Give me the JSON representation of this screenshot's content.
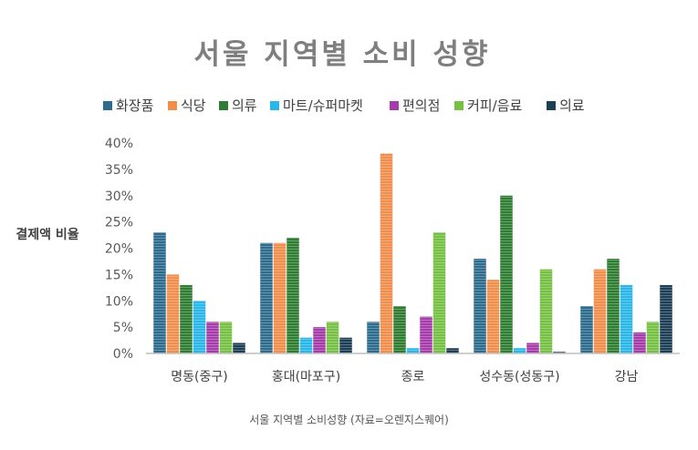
{
  "caption": "서울 지역별 소비성향 (자료=오렌지스퀘어)",
  "chart_data": {
    "type": "bar",
    "title": "서울 지역별 소비 성향",
    "xlabel": "",
    "ylabel": "결제액 비율",
    "ylim": [
      0,
      40
    ],
    "yticks": [
      "0%",
      "5%",
      "10%",
      "15%",
      "20%",
      "25%",
      "30%",
      "35%",
      "40%"
    ],
    "grid": false,
    "legend_position": "top",
    "categories": [
      "명동(중구)",
      "홍대(마포구)",
      "종로",
      "성수동(성동구)",
      "강남"
    ],
    "series": [
      {
        "name": "화장품",
        "color": "#2e6c8e",
        "values": [
          23,
          21,
          6,
          18,
          9
        ]
      },
      {
        "name": "식당",
        "color": "#f28e4c",
        "values": [
          15,
          21,
          38,
          14,
          16
        ]
      },
      {
        "name": "의류",
        "color": "#2f7d32",
        "values": [
          13,
          22,
          9,
          30,
          18
        ]
      },
      {
        "name": "마트/슈퍼마켓",
        "color": "#29b6e8",
        "values": [
          10,
          3,
          1,
          1,
          13
        ]
      },
      {
        "name": "편의점",
        "color": "#a53caa",
        "values": [
          6,
          5,
          7,
          2,
          4
        ]
      },
      {
        "name": "커피/음료",
        "color": "#76c043",
        "values": [
          6,
          6,
          23,
          16,
          6
        ]
      },
      {
        "name": "의료",
        "color": "#1d3f55",
        "values": [
          2,
          3,
          1,
          0.3,
          13
        ]
      }
    ]
  }
}
